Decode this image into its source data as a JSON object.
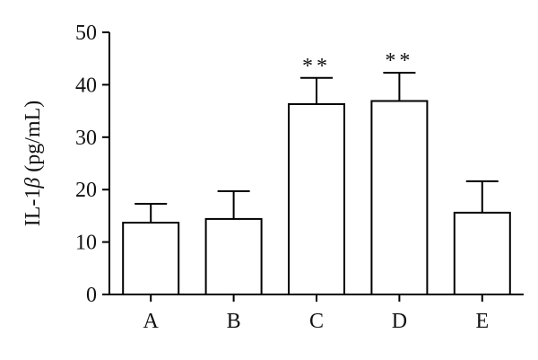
{
  "chart_data": {
    "type": "bar",
    "categories": [
      "A",
      "B",
      "C",
      "D",
      "E"
    ],
    "values": [
      13.7,
      14.4,
      36.3,
      36.9,
      15.6
    ],
    "error_upper": [
      17.3,
      19.7,
      41.3,
      42.3,
      21.6
    ],
    "annotations": [
      "",
      "",
      "**",
      "**",
      ""
    ],
    "ylabel_prefix": "IL-1",
    "ylabel_symbol": "β",
    "ylabel_suffix": " (pg/mL)",
    "ylim": [
      0,
      50
    ],
    "yticks": [
      0,
      10,
      20,
      30,
      40,
      50
    ],
    "grid": false,
    "bar_fill": "#ffffff",
    "bar_stroke": "#000000"
  }
}
